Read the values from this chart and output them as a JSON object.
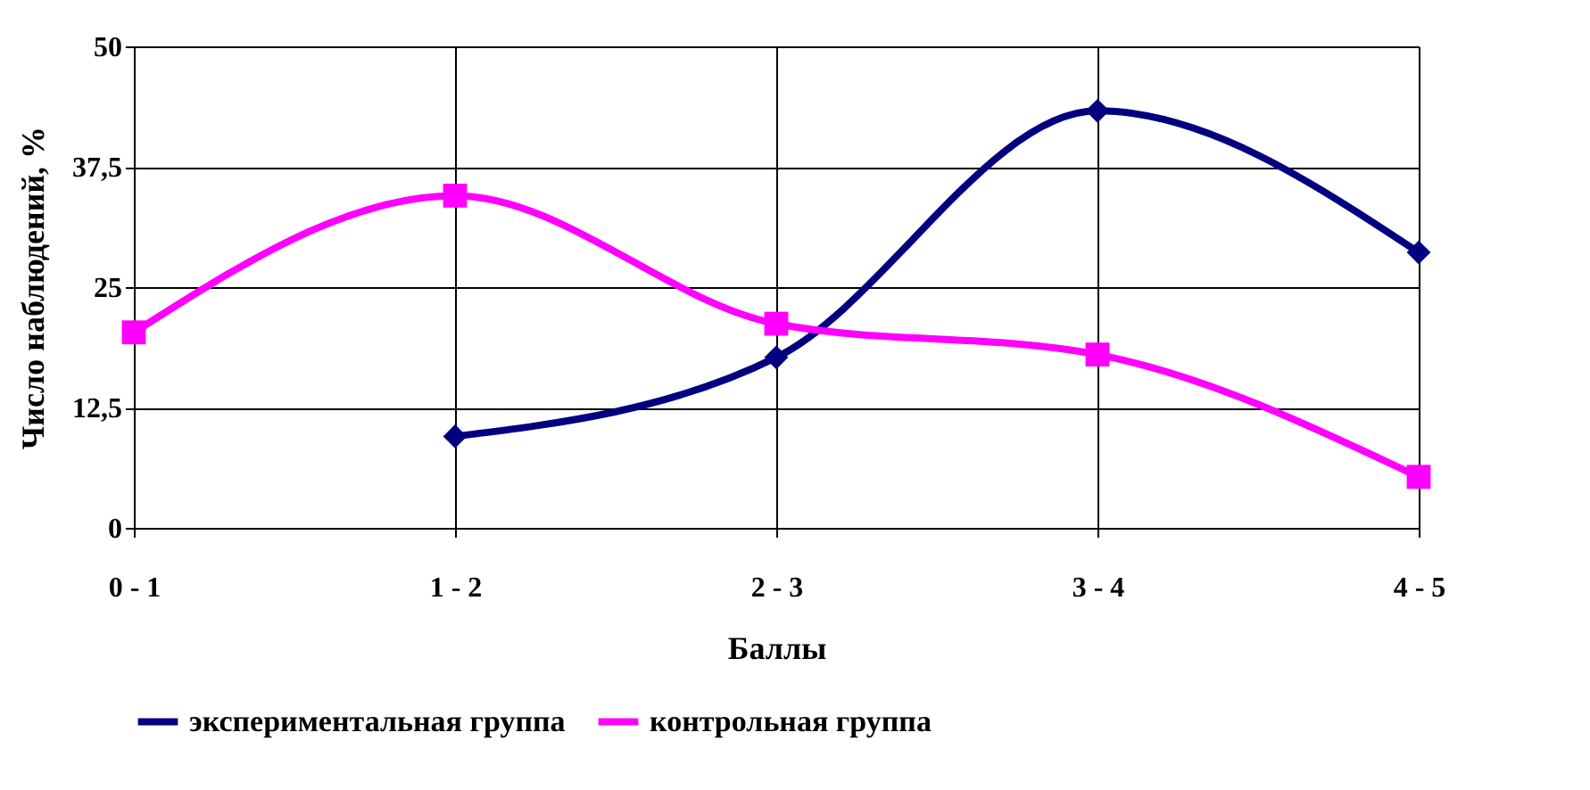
{
  "chart_data": {
    "type": "line",
    "xlabel": "Баллы",
    "ylabel": "Число наблюдений, %",
    "categories": [
      "0 - 1",
      "1 - 2",
      "2 - 3",
      "3 - 4",
      "4 - 5"
    ],
    "series": [
      {
        "name": "экспериментальная группа",
        "color": "#000080",
        "marker": "diamond",
        "values": [
          null,
          9.5,
          17.7,
          43.3,
          28.6
        ]
      },
      {
        "name": "контрольная группа",
        "color": "#ff00ff",
        "marker": "square",
        "values": [
          20.3,
          34.5,
          21.2,
          18.0,
          5.3
        ]
      }
    ],
    "ylim": [
      0,
      50
    ],
    "yticks": [
      0,
      {
        "value": 12.5,
        "label": "12,5"
      },
      25,
      {
        "value": 37.5,
        "label": "37,5"
      },
      50
    ],
    "grid": true,
    "legend": "bottom",
    "line_style": "solid"
  }
}
